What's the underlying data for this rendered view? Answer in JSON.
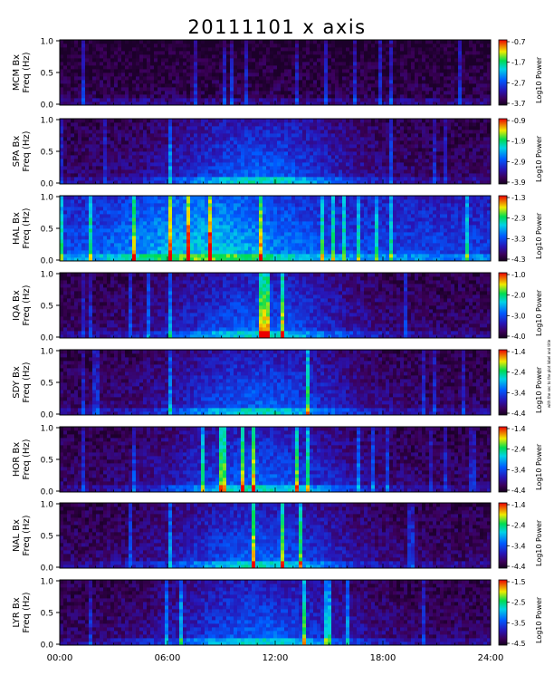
{
  "title": "20111101  x  axis",
  "chart_data": {
    "type": "heatmap",
    "title": "20111101  x  axis",
    "xlabel": "",
    "x_ticks": [
      "00:00",
      "06:00",
      "12:00",
      "18:00",
      "24:00"
    ],
    "x_range_hours": [
      0,
      24
    ],
    "ylabel_freq": "Freq (Hz)",
    "y_ticks": [
      "0.0",
      "0.5",
      "1.0"
    ],
    "y_range_hz": [
      0,
      1.0
    ],
    "colorbar_label": "Log10 Power",
    "colormap": "rainbow (purple → blue → cyan → green → yellow → red)",
    "side_note": "with the sec to the plot label and title",
    "panels": [
      {
        "station": "MCM Bx",
        "cbar_ticks": [
          "-0.7",
          "-1.7",
          "-2.7",
          "-3.7"
        ],
        "cbar_range": [
          -3.7,
          -0.7
        ],
        "activity": "low"
      },
      {
        "station": "SPA Bx",
        "cbar_ticks": [
          "-0.9",
          "-1.9",
          "-2.9",
          "-3.9"
        ],
        "cbar_range": [
          -3.9,
          -0.9
        ],
        "activity": "moderate"
      },
      {
        "station": "HAL Bx",
        "cbar_ticks": [
          "-1.3",
          "-2.3",
          "-3.3",
          "-4.3"
        ],
        "cbar_range": [
          -4.3,
          -1.3
        ],
        "activity": "high"
      },
      {
        "station": "IQA Bx",
        "cbar_ticks": [
          "-1.0",
          "-2.0",
          "-3.0",
          "-4.0"
        ],
        "cbar_range": [
          -4.0,
          -1.0
        ],
        "activity": "moderate"
      },
      {
        "station": "SDY Bx",
        "cbar_ticks": [
          "-1.4",
          "-2.4",
          "-3.4",
          "-4.4"
        ],
        "cbar_range": [
          -4.4,
          -1.4
        ],
        "activity": "moderate"
      },
      {
        "station": "HOR Bx",
        "cbar_ticks": [
          "-1.4",
          "-2.4",
          "-3.4",
          "-4.4"
        ],
        "cbar_range": [
          -4.4,
          -1.4
        ],
        "activity": "moderate"
      },
      {
        "station": "NAL Bx",
        "cbar_ticks": [
          "-1.4",
          "-2.4",
          "-3.4",
          "-4.4"
        ],
        "cbar_range": [
          -4.4,
          -1.4
        ],
        "activity": "moderate"
      },
      {
        "station": "LYR Bx",
        "cbar_ticks": [
          "-1.5",
          "-2.5",
          "-3.5",
          "-4.5"
        ],
        "cbar_range": [
          -4.5,
          -1.5
        ],
        "activity": "moderate"
      }
    ]
  }
}
